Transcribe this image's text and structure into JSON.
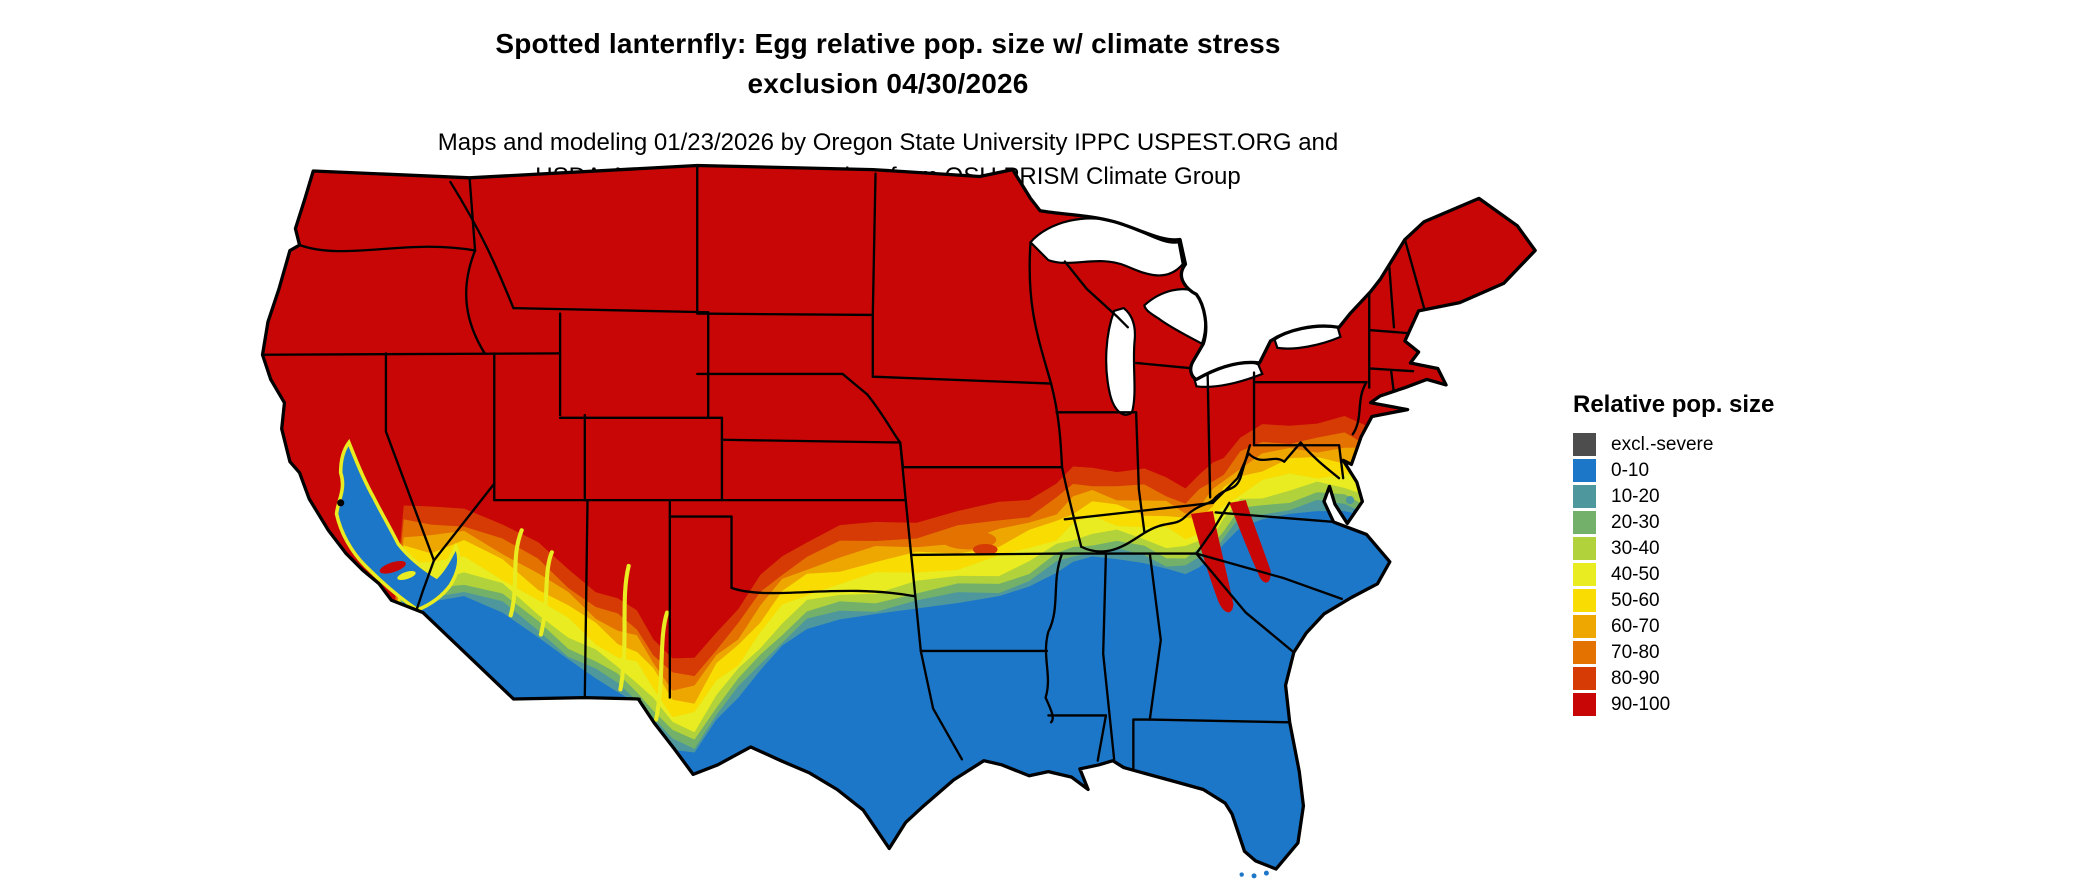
{
  "title": {
    "line1": "Spotted lanternfly: Egg relative pop. size w/ climate stress",
    "line2": "exclusion 04/30/2026"
  },
  "subtitle": {
    "line1": "Maps and modeling 01/23/2026 by Oregon State University IPPC USPEST.ORG and",
    "line2": "USDA-APHIS-PPQ; climate data from OSU PRISM Climate Group"
  },
  "legend": {
    "title": "Relative pop. size",
    "items": [
      {
        "label": "excl.-severe",
        "color": "#4d4d4d"
      },
      {
        "label": "0-10",
        "color": "#1d77c8"
      },
      {
        "label": "10-20",
        "color": "#4e989d"
      },
      {
        "label": "20-30",
        "color": "#73b06a"
      },
      {
        "label": "30-40",
        "color": "#b1d23a"
      },
      {
        "label": "40-50",
        "color": "#e8ec20"
      },
      {
        "label": "50-60",
        "color": "#f8dc02"
      },
      {
        "label": "60-70",
        "color": "#eea701"
      },
      {
        "label": "70-80",
        "color": "#e47200"
      },
      {
        "label": "80-90",
        "color": "#d63b05"
      },
      {
        "label": "90-100",
        "color": "#c80606"
      }
    ]
  },
  "map": {
    "border_color": "#000000",
    "water_color": "#ffffff",
    "regions": [
      {
        "area": "Northern and central US",
        "legend_class": "90-100"
      },
      {
        "area": "Southern US: Texas, Gulf Coast states, Florida, coastal/central California, southern Arizona and New Mexico",
        "legend_class": "0-10"
      },
      {
        "area": "East-west transition band through OK, AR, TN, KY and the Carolinas piedmont",
        "legend_class": "10-90 gradient"
      }
    ]
  }
}
